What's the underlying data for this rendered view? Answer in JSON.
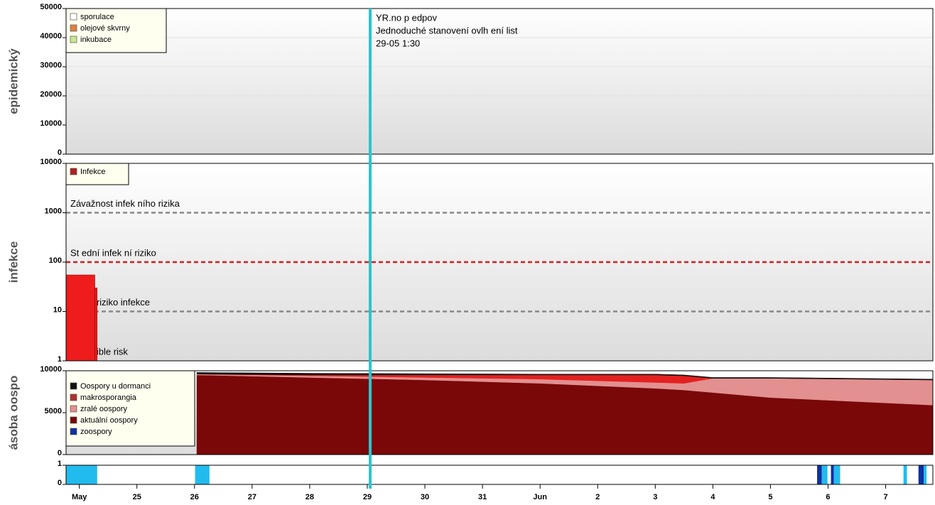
{
  "chart_data": [
    {
      "type": "empty",
      "ylabel": "epidemický",
      "xlim": [
        23.77,
        38.82
      ],
      "ylim": [
        0,
        50000
      ],
      "yticks": [
        0,
        10000,
        20000,
        30000,
        40000,
        50000
      ],
      "grid": true,
      "legend": [
        {
          "name": "sporulace",
          "color": "#ffffff"
        },
        {
          "name": "olejové skvrny",
          "color": "#e08040"
        },
        {
          "name": "inkubace",
          "color": "#c8e890"
        }
      ],
      "marker": {
        "x": 29.05,
        "color": "#2ec4cc",
        "lines": [
          "YR.no p edpov",
          "Jednoduché stanovení ovlh ení list",
          "29-05 1:30"
        ]
      }
    },
    {
      "type": "bar",
      "ylabel": "infekce",
      "log": true,
      "xlim": [
        23.77,
        38.82
      ],
      "ylim": [
        1,
        10000
      ],
      "yticks": [
        1,
        10,
        100,
        1000,
        10000
      ],
      "series": [
        {
          "name": "Infekce",
          "color": "#ee1c1c",
          "legend_color": "#b02020",
          "bins": [
            23.77,
            24.27,
            24.31
          ],
          "values": [
            55,
            30
          ]
        }
      ],
      "thresholds": [
        {
          "value": 1000,
          "label": "Závažnost infek ního rizika",
          "color": "#888888"
        },
        {
          "value": 100,
          "label": "St ední infek ní riziko",
          "color": "#d02020"
        },
        {
          "value": 10,
          "label": "Mírné riziko infekce",
          "color": "#888888"
        },
        {
          "value": 1,
          "label": "Negligible risk"
        }
      ]
    },
    {
      "type": "area",
      "ylabel": "ásoba oospo",
      "xlim": [
        23.77,
        38.82
      ],
      "ylim": [
        0,
        10000
      ],
      "yticks": [
        0,
        5000,
        10000
      ],
      "x": [
        26.04,
        28,
        30,
        32,
        34,
        34.5,
        35,
        36,
        38.82
      ],
      "series": [
        {
          "name": "Oospory u dormanci",
          "color": "#101010",
          "values": [
            200,
            200,
            150,
            100,
            100,
            100,
            100,
            100,
            100
          ]
        },
        {
          "name": "makrosporangia",
          "color": "#e42020",
          "legend_color": "#b03030",
          "values": [
            0,
            100,
            300,
            500,
            900,
            900,
            0,
            0,
            0
          ]
        },
        {
          "name": "zralé oospory",
          "color": "#e29090",
          "values": [
            100,
            200,
            300,
            500,
            700,
            800,
            1700,
            2300,
            3000
          ]
        },
        {
          "name": "aktuální oospory",
          "color": "#7a0808",
          "values": [
            9500,
            9200,
            8900,
            8500,
            7900,
            7700,
            7400,
            6800,
            5900
          ]
        },
        {
          "name": "zoospory",
          "color": "#1030a0",
          "values": [
            0,
            0,
            0,
            0,
            0,
            0,
            0,
            0,
            0
          ]
        }
      ]
    },
    {
      "type": "segments",
      "xlim": [
        23.77,
        38.82
      ],
      "ylim": [
        0,
        1
      ],
      "yticks": [
        0,
        1
      ],
      "xticks": [
        {
          "value": 24,
          "label": "May"
        },
        25,
        26,
        27,
        28,
        29,
        30,
        31,
        {
          "value": 32,
          "label": "Jun"
        },
        {
          "value": 33,
          "label": "2"
        },
        {
          "value": 34,
          "label": "3"
        },
        {
          "value": 35,
          "label": "4"
        },
        {
          "value": 36,
          "label": "5"
        },
        {
          "value": 37,
          "label": "6"
        },
        {
          "value": 38,
          "label": "7"
        }
      ],
      "start": [
        23.77,
        26.01,
        36.81,
        36.89,
        37.05,
        37.1,
        38.31,
        38.57,
        38.66
      ],
      "end": [
        24.31,
        26.26,
        36.89,
        36.99,
        37.1,
        37.21,
        38.37,
        38.66,
        38.71
      ],
      "values": [
        1,
        1,
        1,
        1,
        1,
        1,
        1,
        1,
        1
      ],
      "colors": [
        "#22bbee",
        "#22bbee",
        "#1030a0",
        "#22bbee",
        "#1030a0",
        "#22bbee",
        "#22bbee",
        "#1030a0",
        "#22bbee"
      ]
    }
  ]
}
